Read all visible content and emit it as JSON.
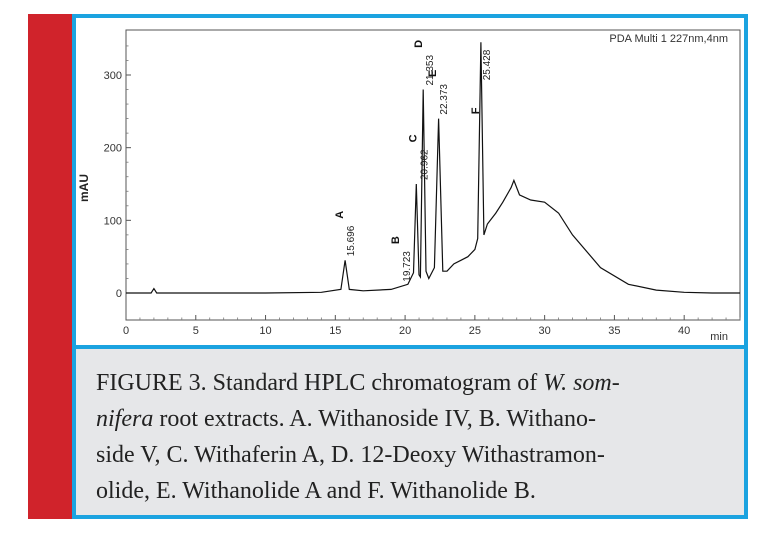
{
  "chart_data": {
    "type": "line",
    "legend_label": "PDA Multi 1 227nm,4nm",
    "ylabel": "mAU",
    "xlabel": "min",
    "xlim": [
      0,
      44
    ],
    "ylim": [
      -20,
      360
    ],
    "x_ticks": [
      0,
      5,
      10,
      15,
      20,
      25,
      30,
      35,
      40
    ],
    "y_ticks": [
      0,
      100,
      200,
      300
    ],
    "grid": false,
    "series": [
      {
        "x": [
          0.0,
          1.8,
          2.0,
          2.2,
          5.0,
          10.0,
          14.0,
          15.4,
          15.7,
          16.0,
          17.0,
          19.0,
          20.2,
          20.6,
          20.8,
          21.0,
          21.1,
          21.3,
          21.5,
          21.7,
          22.1,
          22.4,
          22.7,
          23.0,
          23.5,
          24.0,
          24.5,
          25.0,
          25.2,
          25.43,
          25.65,
          25.9,
          26.5,
          27.0,
          27.6,
          27.8,
          28.2,
          29.0,
          30.0,
          31.0,
          32.0,
          34.0,
          36.0,
          38.0,
          40.0,
          42.0,
          44.0
        ],
        "y": [
          0,
          0,
          6,
          0,
          0,
          0,
          1,
          5,
          45,
          5,
          3,
          5,
          12,
          28,
          150,
          25,
          22,
          280,
          30,
          20,
          35,
          240,
          30,
          30,
          40,
          45,
          50,
          60,
          75,
          345,
          80,
          95,
          110,
          125,
          145,
          155,
          135,
          128,
          125,
          110,
          80,
          35,
          12,
          4,
          1,
          0,
          0
        ]
      }
    ],
    "peaks": [
      {
        "letter": "A",
        "retention_time": "15.696"
      },
      {
        "letter": "B",
        "retention_time": "19.723"
      },
      {
        "letter": "C",
        "retention_time": "20.962"
      },
      {
        "letter": "D",
        "retention_time": "21.353"
      },
      {
        "letter": "E",
        "retention_time": "22.373"
      },
      {
        "letter": "F",
        "retention_time": "25.428"
      }
    ]
  },
  "caption": {
    "line1_pre": "FIGURE 3. Standard HPLC chromatogram of ",
    "line1_italic": "W. som-",
    "line2_italic": "nifera",
    "line2_post": " root extracts. A. Withanoside IV, B. Withano-",
    "line3": "side V, C. Withaferin A, D. 12-Deoxy Withastramon-",
    "line4": "olide, E. Withanolide A and F. Withanolide B."
  }
}
